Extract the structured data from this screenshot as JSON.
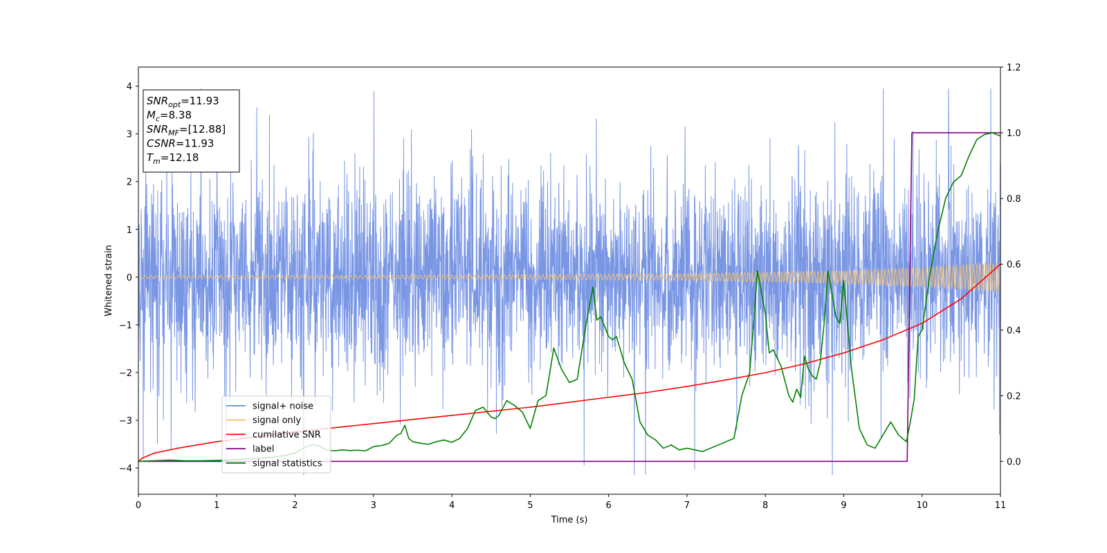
{
  "chart_data": {
    "type": "line",
    "xlabel": "Time (s)",
    "ylabel": "Whitened strain",
    "ylabel_right": "",
    "xlim": [
      0,
      11
    ],
    "ylim_left": [
      -4.55,
      4.4
    ],
    "ylim_right": [
      -0.1,
      1.2
    ],
    "x_ticks": [
      0,
      1,
      2,
      3,
      4,
      5,
      6,
      7,
      8,
      9,
      10,
      11
    ],
    "x_tick_labels": [
      "0",
      "1",
      "2",
      "3",
      "4",
      "5",
      "6",
      "7",
      "8",
      "9",
      "10",
      "11"
    ],
    "y_left_ticks": [
      -4,
      -3,
      -2,
      -1,
      0,
      1,
      2,
      3,
      4
    ],
    "y_left_tick_labels": [
      "−4",
      "−3",
      "−2",
      "−1",
      "0",
      "1",
      "2",
      "3",
      "4"
    ],
    "y_right_ticks": [
      0.0,
      0.2,
      0.4,
      0.6,
      0.8,
      1.0,
      1.2
    ],
    "y_right_tick_labels": [
      "0.0",
      "0.2",
      "0.4",
      "0.6",
      "0.8",
      "1.0",
      "1.2"
    ],
    "grid": false,
    "legend": {
      "placement": "lower-left",
      "entries": [
        {
          "label": "signal+ noise",
          "color": "#6688e0"
        },
        {
          "label": "signal only",
          "color": "#f6c26e"
        },
        {
          "label": "cumilative SNR",
          "color": "#ff0000"
        },
        {
          "label": "label",
          "color": "#800080"
        },
        {
          "label": "signal statistics",
          "color": "#008000"
        }
      ]
    },
    "annotation": {
      "placement": "top-left",
      "lines": [
        {
          "name": "SNR",
          "sub": "opt",
          "value": "=11.93"
        },
        {
          "name": "M",
          "sub": "c",
          "value": "=8.38"
        },
        {
          "name": "SNR",
          "sub": "MF",
          "value": "=[12.88]"
        },
        {
          "name": "CSNR",
          "sub": "",
          "value": "=11.93"
        },
        {
          "name": "T",
          "sub": "m",
          "value": "=12.18"
        }
      ]
    },
    "series": [
      {
        "label": "signal+ noise",
        "axis": "left",
        "color": "#6688e0",
        "style": "dense noise, approx. ±1.3 core band, spikes to about ±4 (min ≈ −4.15 at t≈2.9, max ≈ 3.95 at t≈9.2)",
        "x_range": [
          0,
          11
        ],
        "y_range": [
          -4.15,
          3.95
        ]
      },
      {
        "label": "signal only",
        "axis": "left",
        "color": "#f6c26e",
        "style": "chirp oscillation, amplitude grows from ≈0.03 at t=0 to ≈0.3 at t=11",
        "amplitude_points": [
          [
            0,
            0.03
          ],
          [
            4,
            0.04
          ],
          [
            7,
            0.07
          ],
          [
            9,
            0.13
          ],
          [
            10,
            0.2
          ],
          [
            11,
            0.3
          ]
        ]
      },
      {
        "label": "cumilative SNR",
        "axis": "right",
        "color": "#ff0000",
        "x": [
          0,
          0.05,
          0.2,
          0.5,
          1,
          1.5,
          2,
          3,
          4,
          5,
          6,
          6.5,
          7,
          7.5,
          8,
          8.5,
          9,
          9.5,
          10,
          10.5,
          11
        ],
        "y": [
          0.0,
          0.01,
          0.025,
          0.04,
          0.06,
          0.075,
          0.09,
          0.115,
          0.14,
          0.165,
          0.195,
          0.21,
          0.228,
          0.248,
          0.27,
          0.297,
          0.33,
          0.37,
          0.42,
          0.495,
          0.6
        ]
      },
      {
        "label": "label",
        "axis": "right",
        "color": "#800080",
        "x": [
          0,
          9.81,
          9.87,
          11
        ],
        "y": [
          0,
          0,
          1,
          1
        ]
      },
      {
        "label": "signal statistics",
        "axis": "right",
        "color": "#008000",
        "x": [
          0,
          0.2,
          0.4,
          0.6,
          0.8,
          1.0,
          1.2,
          1.4,
          1.6,
          1.8,
          2.0,
          2.1,
          2.2,
          2.3,
          2.4,
          2.5,
          2.6,
          2.7,
          2.8,
          2.9,
          3.0,
          3.1,
          3.2,
          3.3,
          3.35,
          3.4,
          3.45,
          3.5,
          3.6,
          3.7,
          3.8,
          3.9,
          4.0,
          4.1,
          4.2,
          4.3,
          4.4,
          4.5,
          4.55,
          4.6,
          4.7,
          4.8,
          4.9,
          5.0,
          5.1,
          5.2,
          5.25,
          5.3,
          5.4,
          5.5,
          5.6,
          5.7,
          5.8,
          5.85,
          5.9,
          6.0,
          6.05,
          6.1,
          6.2,
          6.3,
          6.4,
          6.5,
          6.6,
          6.7,
          6.8,
          6.9,
          7.0,
          7.2,
          7.4,
          7.5,
          7.6,
          7.7,
          7.8,
          7.85,
          7.9,
          8.0,
          8.05,
          8.1,
          8.2,
          8.3,
          8.35,
          8.4,
          8.45,
          8.5,
          8.55,
          8.6,
          8.65,
          8.7,
          8.75,
          8.8,
          8.9,
          8.95,
          9.0,
          9.1,
          9.2,
          9.3,
          9.4,
          9.5,
          9.6,
          9.7,
          9.8,
          9.85,
          9.9,
          9.95,
          10.0,
          10.1,
          10.2,
          10.3,
          10.4,
          10.5,
          10.6,
          10.7,
          10.8,
          10.9,
          11.0
        ],
        "y": [
          0.0,
          0.002,
          0.004,
          0.002,
          0.002,
          0.003,
          0.005,
          0.008,
          0.01,
          0.015,
          0.025,
          0.04,
          0.05,
          0.048,
          0.035,
          0.032,
          0.035,
          0.033,
          0.034,
          0.032,
          0.045,
          0.048,
          0.055,
          0.08,
          0.085,
          0.11,
          0.07,
          0.06,
          0.055,
          0.052,
          0.06,
          0.065,
          0.058,
          0.07,
          0.1,
          0.155,
          0.165,
          0.135,
          0.13,
          0.14,
          0.185,
          0.17,
          0.15,
          0.1,
          0.185,
          0.2,
          0.27,
          0.345,
          0.28,
          0.24,
          0.25,
          0.4,
          0.53,
          0.43,
          0.44,
          0.38,
          0.37,
          0.38,
          0.3,
          0.25,
          0.12,
          0.08,
          0.065,
          0.04,
          0.05,
          0.035,
          0.04,
          0.03,
          0.05,
          0.06,
          0.07,
          0.2,
          0.27,
          0.42,
          0.58,
          0.45,
          0.33,
          0.34,
          0.29,
          0.2,
          0.18,
          0.22,
          0.195,
          0.32,
          0.28,
          0.26,
          0.25,
          0.3,
          0.42,
          0.58,
          0.44,
          0.42,
          0.55,
          0.28,
          0.1,
          0.05,
          0.04,
          0.08,
          0.12,
          0.08,
          0.06,
          0.12,
          0.19,
          0.38,
          0.4,
          0.57,
          0.7,
          0.8,
          0.85,
          0.87,
          0.93,
          0.98,
          0.995,
          1.0,
          0.99
        ]
      }
    ]
  }
}
